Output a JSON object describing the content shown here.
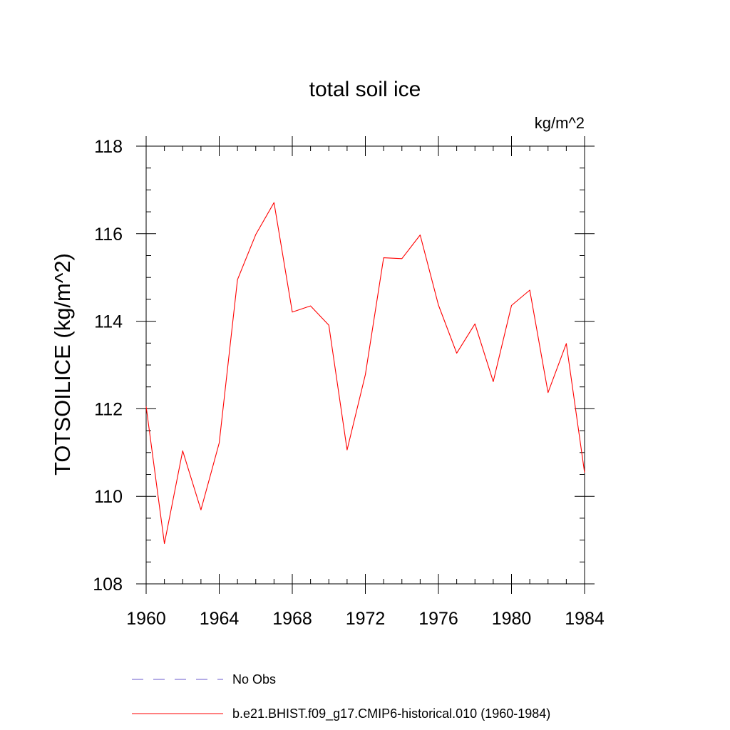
{
  "chart_data": {
    "type": "line",
    "title": "total soil ice",
    "units": "kg/m^2",
    "ylabel": "TOTSOILICE  (kg/m^2)",
    "xlabel": "",
    "xlim": [
      1960,
      1984
    ],
    "ylim": [
      108,
      118
    ],
    "x_ticks": [
      1960,
      1964,
      1968,
      1972,
      1976,
      1980,
      1984
    ],
    "y_ticks": [
      108,
      110,
      112,
      114,
      116,
      118
    ],
    "x_minor_step": 1,
    "y_minor_step": 0.5,
    "legend_position": "bottom-left",
    "series": [
      {
        "name": "b.e21.BHIST.f09_g17.CMIP6-historical.010 (1960-1984)",
        "color": "#ff0000",
        "dash": "solid",
        "x": [
          1960,
          1961,
          1962,
          1963,
          1964,
          1965,
          1966,
          1967,
          1968,
          1969,
          1970,
          1971,
          1972,
          1973,
          1974,
          1975,
          1976,
          1977,
          1978,
          1979,
          1980,
          1981,
          1982,
          1983,
          1984
        ],
        "y": [
          112.05,
          108.92,
          111.04,
          109.69,
          111.22,
          114.95,
          115.98,
          116.71,
          114.21,
          114.35,
          113.91,
          111.06,
          112.78,
          115.45,
          115.43,
          115.97,
          114.37,
          113.27,
          113.94,
          112.62,
          114.36,
          114.71,
          112.37,
          113.49,
          110.54
        ]
      }
    ],
    "legend": [
      {
        "label": "No Obs",
        "color": "#6a5acd",
        "dash": "dashed"
      },
      {
        "label": "b.e21.BHIST.f09_g17.CMIP6-historical.010 (1960-1984)",
        "color": "#ff0000",
        "dash": "solid"
      }
    ]
  }
}
